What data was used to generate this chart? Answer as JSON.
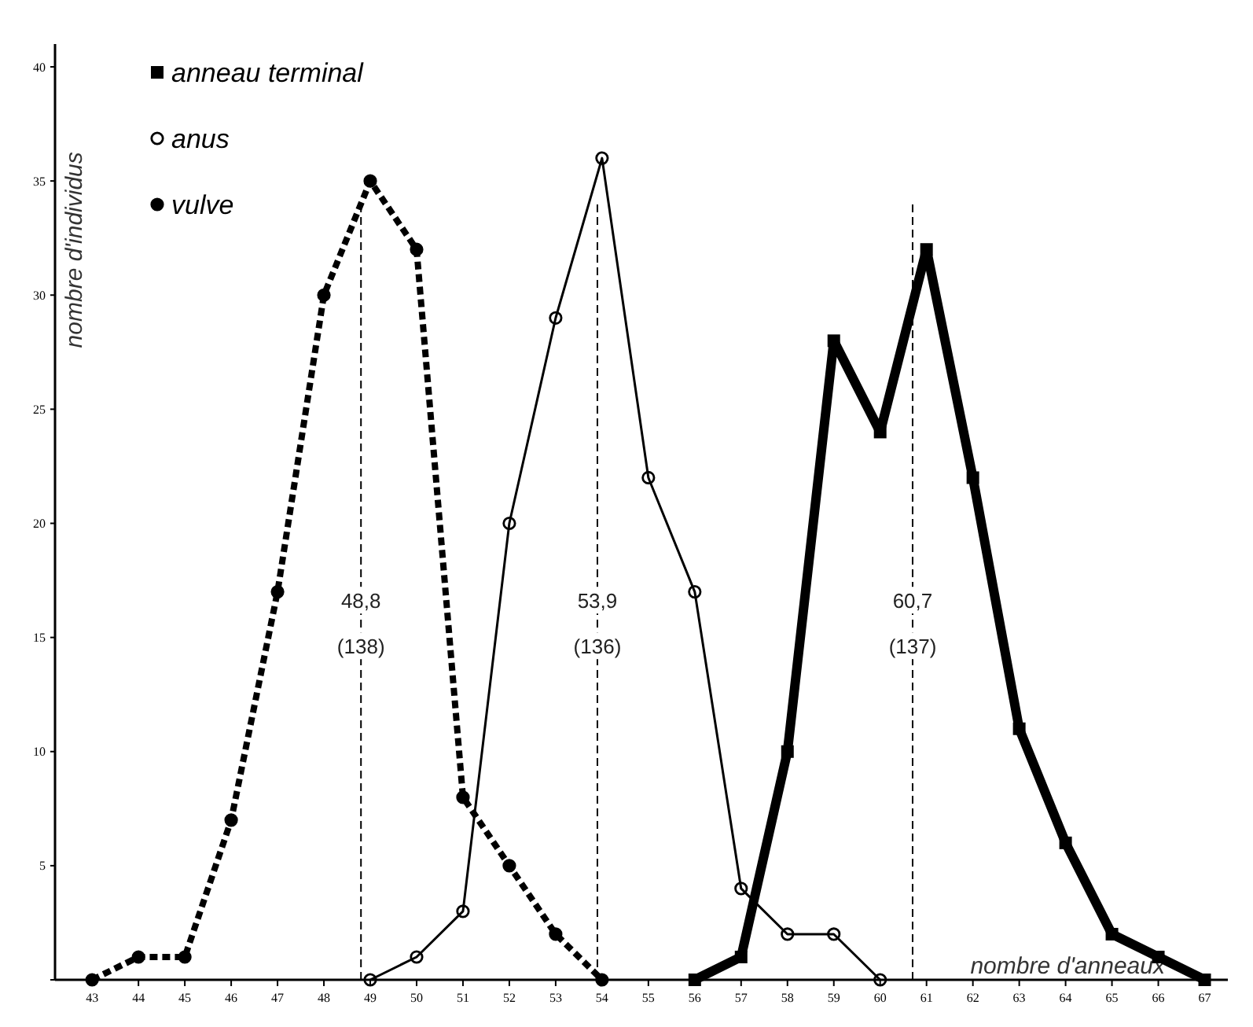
{
  "chart_data": {
    "type": "line",
    "xlabel": "nombre d'anneaux",
    "ylabel": "nombre d'individus",
    "xlim": [
      42.2,
      67.5
    ],
    "ylim": [
      0,
      41
    ],
    "xticks": [
      43,
      44,
      45,
      46,
      47,
      48,
      49,
      50,
      51,
      52,
      53,
      54,
      55,
      56,
      57,
      58,
      59,
      60,
      61,
      62,
      63,
      64,
      65,
      66,
      67
    ],
    "yticks": [
      {
        "value": 0,
        "label": null
      },
      5,
      10,
      15,
      20,
      25,
      30,
      35,
      40
    ],
    "grid": false,
    "legend": "top left",
    "series": [
      {
        "name": "anneau terminal",
        "color": "#000000",
        "marker": "square",
        "line_style": "solid",
        "x": [
          56,
          57,
          58,
          59,
          60,
          61,
          62,
          63,
          64,
          65,
          66,
          67
        ],
        "values": [
          0,
          1,
          10,
          28,
          24,
          32,
          22,
          11,
          6,
          2,
          1,
          0
        ]
      },
      {
        "name": "anus",
        "color": "#000000",
        "marker": "circle",
        "line_style": "solid",
        "x": [
          49,
          50,
          51,
          52,
          53,
          54,
          55,
          56,
          57,
          58,
          59,
          60
        ],
        "values": [
          0,
          1,
          3,
          20,
          29,
          36,
          22,
          17,
          4,
          2,
          2,
          0
        ]
      },
      {
        "name": "vulve",
        "color": "#000000",
        "marker": "circle",
        "line_style": "dashed",
        "x": [
          43,
          44,
          45,
          46,
          47,
          48,
          49,
          50,
          51,
          52,
          53,
          54
        ],
        "values": [
          0,
          1,
          1,
          7,
          17,
          30,
          35,
          32,
          8,
          5,
          2,
          0
        ]
      }
    ],
    "ref_lines": [
      {
        "axis": "x",
        "value": 48.8,
        "line_style": "dashed",
        "color": "#000000"
      },
      {
        "axis": "x",
        "value": 53.9,
        "line_style": "dashed",
        "color": "#000000"
      },
      {
        "axis": "x",
        "value": 60.7,
        "line_style": "dashed",
        "color": "#000000"
      }
    ],
    "annotations": [
      {
        "text": "48,8",
        "x": 48.8,
        "y": 16.6
      },
      {
        "text": "(138)",
        "x": 48.8,
        "y": 14.6
      },
      {
        "text": "53,9",
        "x": 53.9,
        "y": 16.6
      },
      {
        "text": "(136)",
        "x": 53.9,
        "y": 14.6
      },
      {
        "text": "60,7",
        "x": 60.7,
        "y": 16.6
      },
      {
        "text": "(137)",
        "x": 60.7,
        "y": 14.6
      }
    ]
  }
}
